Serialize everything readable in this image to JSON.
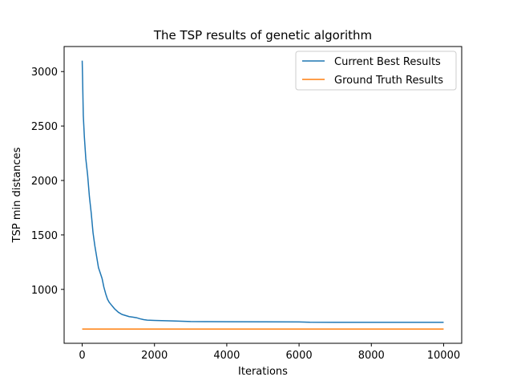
{
  "chart_data": {
    "type": "line",
    "title": "The TSP results of genetic algorithm",
    "xlabel": "Iterations",
    "ylabel": "TSP min distances",
    "xlim": [
      -500,
      10500
    ],
    "ylim": [
      505,
      3230
    ],
    "xticks": [
      0,
      2000,
      4000,
      6000,
      8000,
      10000
    ],
    "yticks": [
      1000,
      1500,
      2000,
      2500,
      3000
    ],
    "grid": false,
    "legend": "top-right",
    "series": [
      {
        "name": "Current Best Results",
        "color": "#1f77b4",
        "x": [
          0,
          10,
          30,
          60,
          100,
          150,
          200,
          250,
          300,
          350,
          400,
          450,
          500,
          550,
          600,
          650,
          700,
          750,
          800,
          900,
          1000,
          1100,
          1200,
          1300,
          1400,
          1500,
          1600,
          1700,
          1800,
          2000,
          2200,
          2500,
          3000,
          3500,
          4000,
          5000,
          6000,
          6300,
          7000,
          8000,
          9000,
          10000
        ],
        "y": [
          3100,
          2950,
          2600,
          2400,
          2200,
          2050,
          1850,
          1700,
          1520,
          1400,
          1300,
          1200,
          1150,
          1100,
          1020,
          960,
          910,
          880,
          860,
          820,
          790,
          770,
          760,
          750,
          745,
          740,
          730,
          722,
          718,
          715,
          713,
          710,
          705,
          704,
          703,
          702,
          701,
          698,
          697,
          697,
          697,
          697
        ]
      },
      {
        "name": "Ground Truth Results",
        "color": "#ff7f0e",
        "x": [
          0,
          10000
        ],
        "y": [
          636,
          636
        ]
      }
    ]
  }
}
